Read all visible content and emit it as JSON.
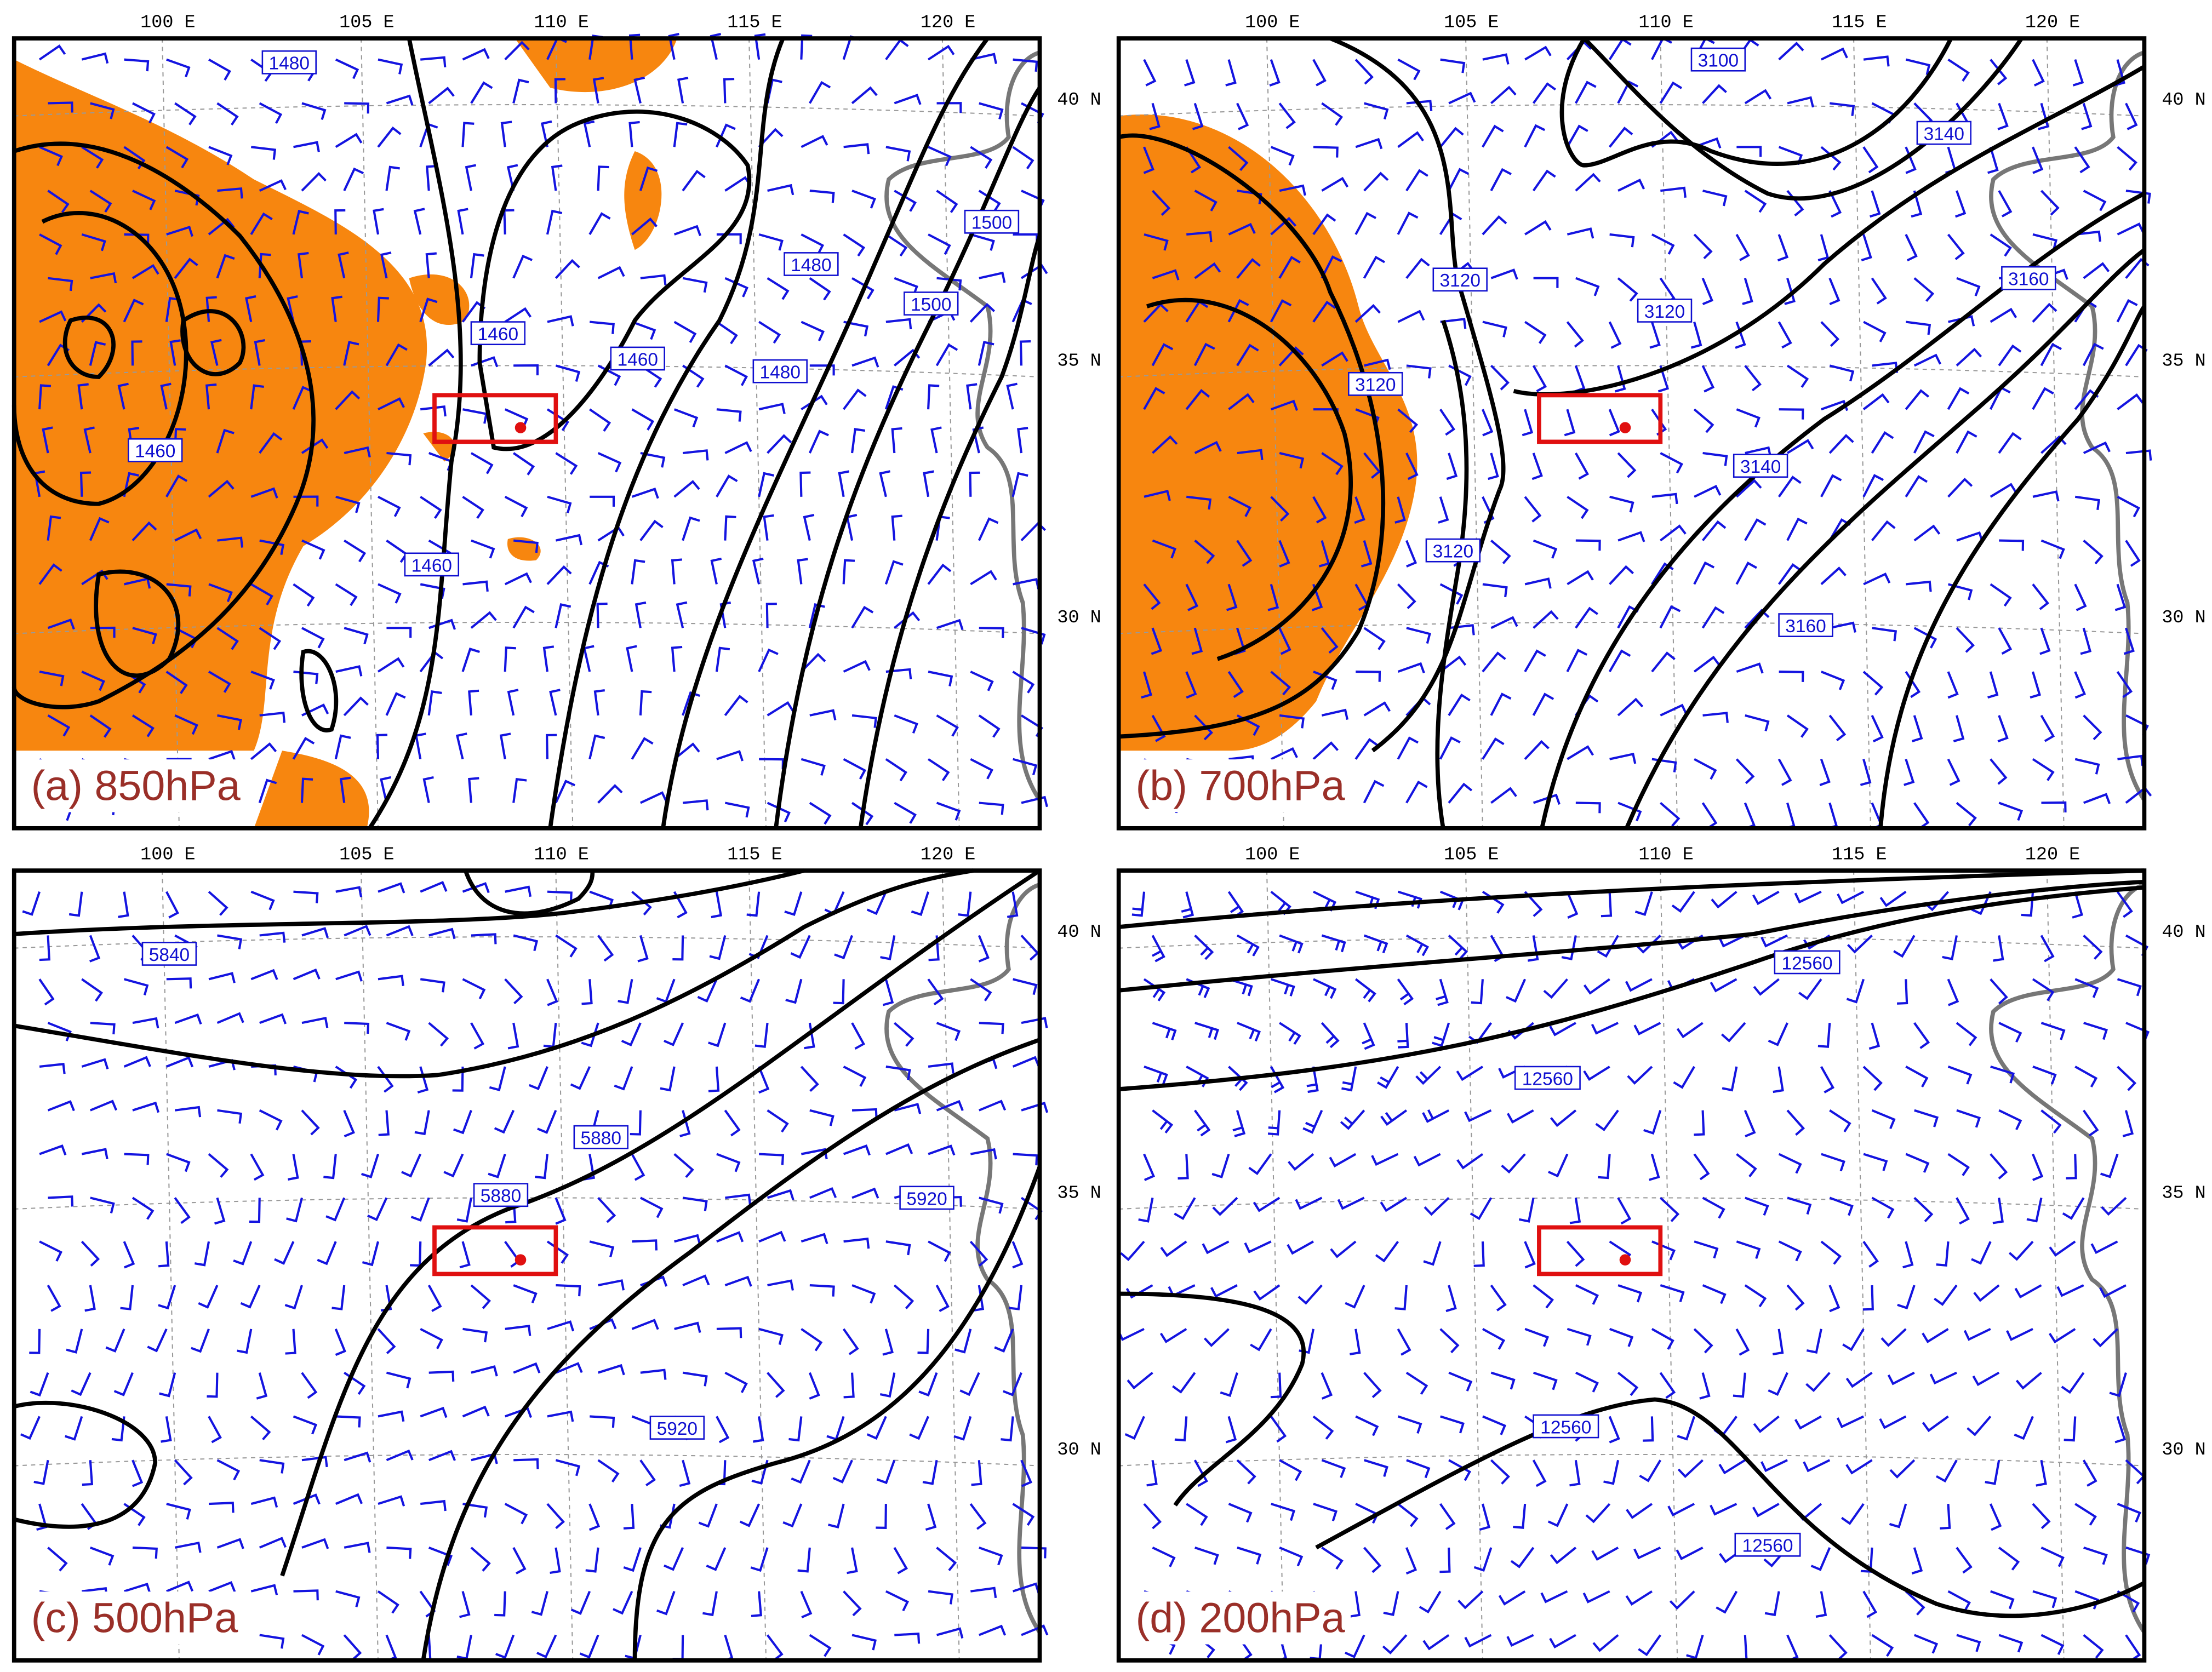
{
  "axes": {
    "lon_labels": [
      "100 E",
      "105 E",
      "110 E",
      "115 E",
      "120 E"
    ],
    "lat_labels": [
      "40 N",
      "35 N",
      "30 N"
    ]
  },
  "panels": [
    {
      "label": "(a) 850hPa",
      "contour_labels": [
        1480,
        1460,
        1460,
        1480,
        1480,
        1500,
        1500,
        1460,
        1460
      ]
    },
    {
      "label": "(b) 700hPa",
      "contour_labels": [
        3100,
        3140,
        3120,
        3120,
        3160,
        3120,
        3140,
        3120,
        3160
      ]
    },
    {
      "label": "(c) 500hPa",
      "contour_labels": [
        5840,
        5880,
        5880,
        5920,
        5920
      ]
    },
    {
      "label": "(d) 200hPa",
      "contour_labels": [
        12560,
        12560,
        12560,
        12560
      ]
    }
  ]
}
